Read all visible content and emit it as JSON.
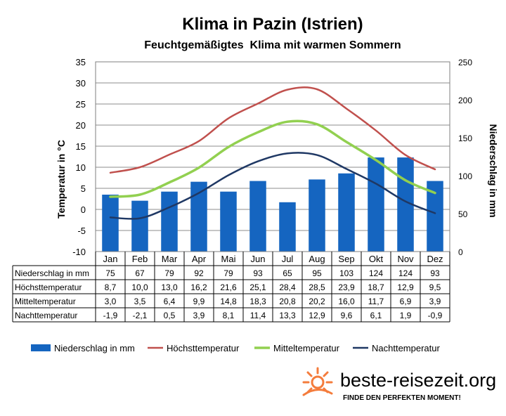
{
  "chart_data": {
    "type": "bar",
    "title": "Klima in Pazin (Istrien)",
    "subtitle": "Feuchtgemäßigtes  Klima mit warmen Sommern",
    "ylabel_left": "Temperatur in °C",
    "ylabel_right": "Niederschlag in mm",
    "ylim_left": [
      -10,
      35
    ],
    "yticks_left": [
      "35",
      "30",
      "25",
      "20",
      "15",
      "10",
      "5",
      "0",
      "-5",
      "-10"
    ],
    "ylim_right": [
      0,
      250
    ],
    "yticks_right": [
      "250",
      "200",
      "150",
      "100",
      "50",
      "0"
    ],
    "grid": true,
    "legend_position": "bottom",
    "categories": [
      "Jan",
      "Feb",
      "Mar",
      "Apr",
      "Mai",
      "Jun",
      "Jul",
      "Aug",
      "Sep",
      "Okt",
      "Nov",
      "Dez"
    ],
    "series": [
      {
        "name": "Niederschlag in mm",
        "kind": "bar",
        "axis": "right",
        "color": "#1565c0",
        "values": [
          75,
          67,
          79,
          92,
          79,
          93,
          65,
          95,
          103,
          124,
          124,
          93
        ],
        "labels": [
          "75",
          "67",
          "79",
          "92",
          "79",
          "93",
          "65",
          "95",
          "103",
          "124",
          "124",
          "93"
        ]
      },
      {
        "name": "Höchsttemperatur",
        "kind": "line",
        "axis": "left",
        "color": "#c0504d",
        "values": [
          8.7,
          10.0,
          13.0,
          16.2,
          21.6,
          25.1,
          28.4,
          28.5,
          23.9,
          18.7,
          12.9,
          9.5
        ],
        "labels": [
          "8,7",
          "10,0",
          "13,0",
          "16,2",
          "21,6",
          "25,1",
          "28,4",
          "28,5",
          "23,9",
          "18,7",
          "12,9",
          "9,5"
        ]
      },
      {
        "name": "Mitteltemperatur",
        "kind": "line",
        "axis": "left",
        "color": "#92d050",
        "values": [
          3.0,
          3.5,
          6.4,
          9.9,
          14.8,
          18.3,
          20.8,
          20.2,
          16.0,
          11.7,
          6.9,
          3.9
        ],
        "labels": [
          "3,0",
          "3,5",
          "6,4",
          "9,9",
          "14,8",
          "18,3",
          "20,8",
          "20,2",
          "16,0",
          "11,7",
          "6,9",
          "3,9"
        ]
      },
      {
        "name": "Nachttemperatur",
        "kind": "line",
        "axis": "left",
        "color": "#1f3864",
        "values": [
          -1.9,
          -2.1,
          0.5,
          3.9,
          8.1,
          11.4,
          13.3,
          12.9,
          9.6,
          6.1,
          1.9,
          -0.9
        ],
        "labels": [
          "-1,9",
          "-2,1",
          "0,5",
          "3,9",
          "8,1",
          "11,4",
          "13,3",
          "12,9",
          "9,6",
          "6,1",
          "1,9",
          "-0,9"
        ]
      }
    ]
  },
  "branding": {
    "site": "beste-reisezeit.org",
    "tagline": "FINDE DEN PERFEKTEN MOMENT!",
    "icon": "sun-icon",
    "accent_color": "#f47c3c"
  }
}
